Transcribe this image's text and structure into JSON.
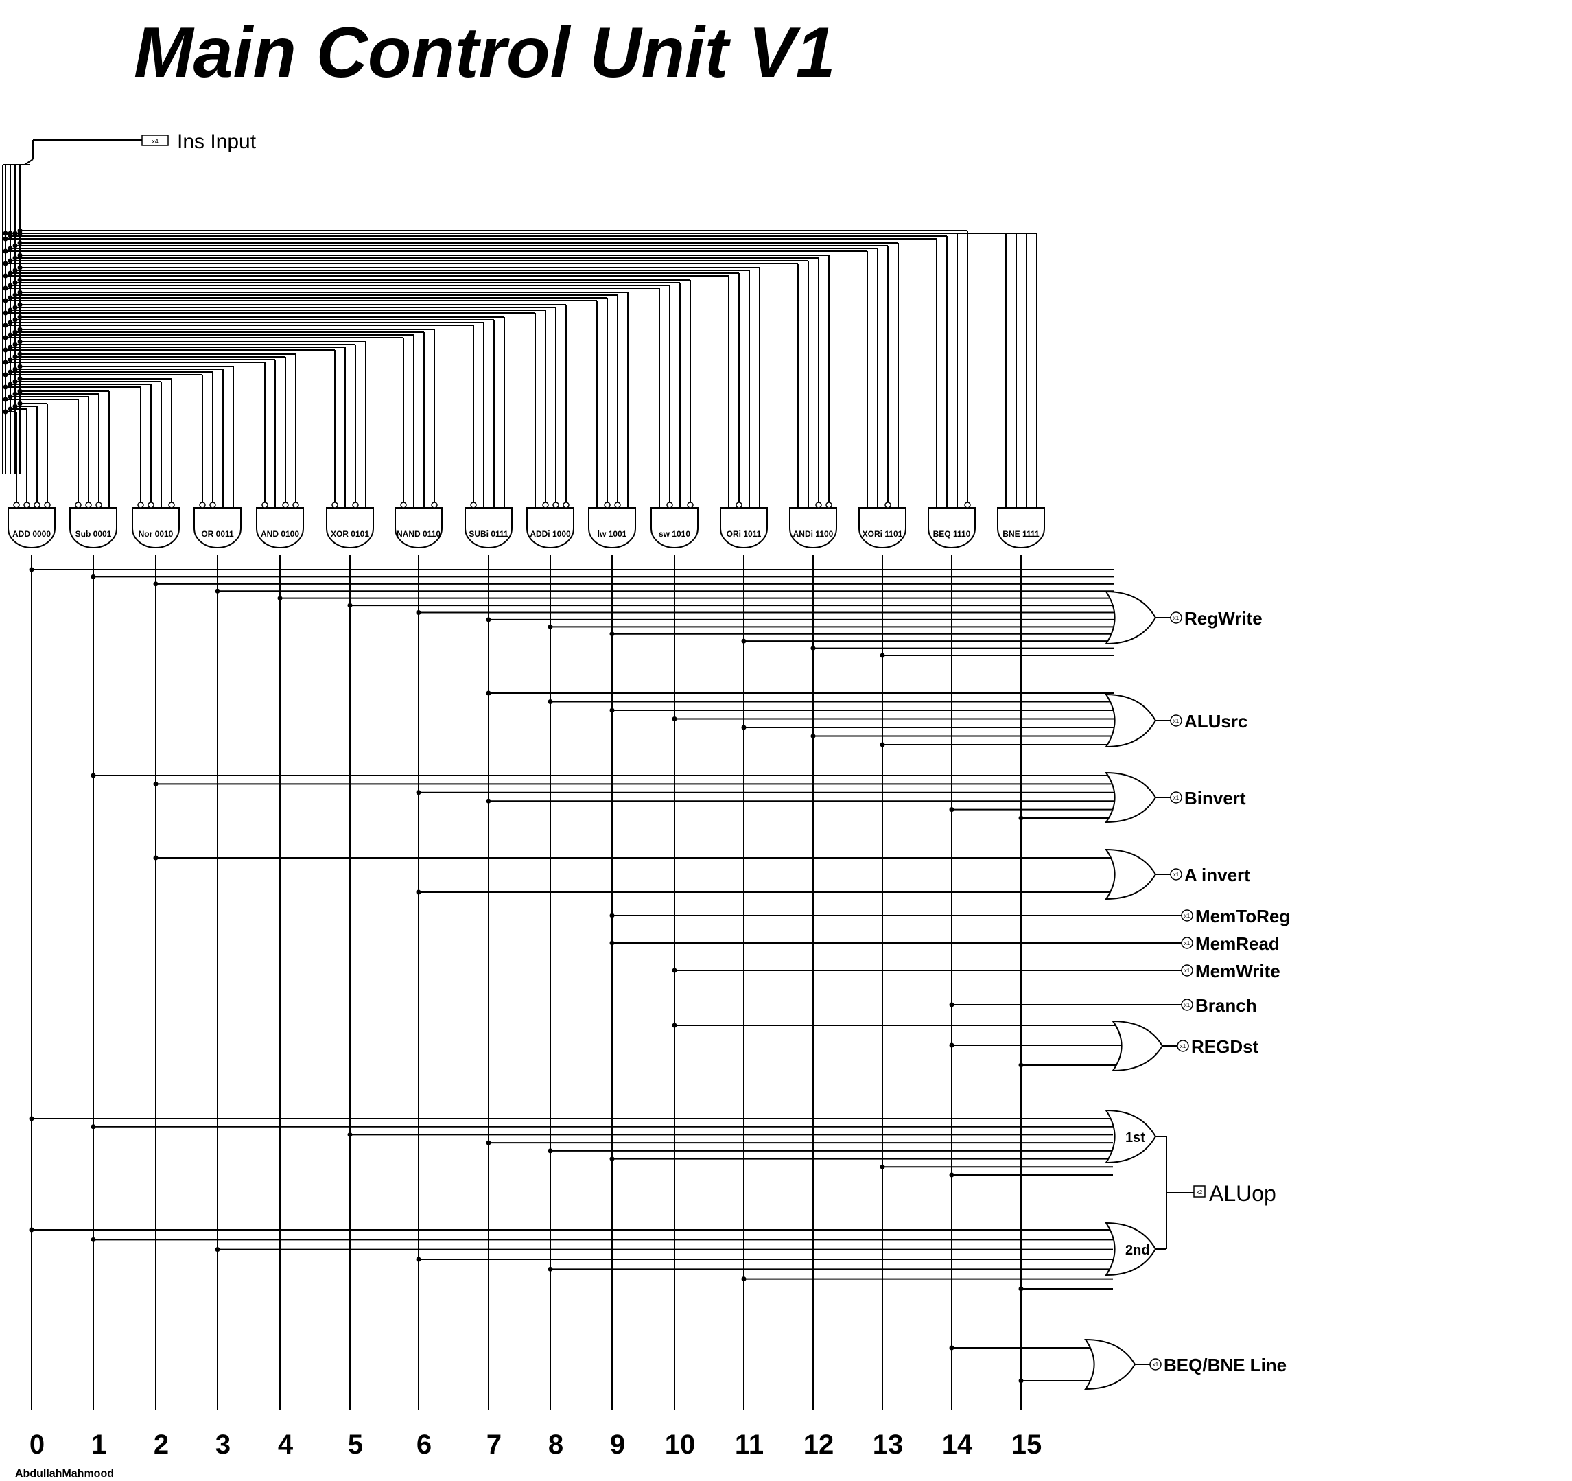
{
  "title": "Main Control Unit V1",
  "input": {
    "label": "Ins Input",
    "pin": "x4"
  },
  "decoders": [
    {
      "label": "ADD 0000"
    },
    {
      "label": "Sub 0001"
    },
    {
      "label": "Nor 0010"
    },
    {
      "label": "OR 0011"
    },
    {
      "label": "AND 0100"
    },
    {
      "label": "XOR 0101"
    },
    {
      "label": "NAND 0110"
    },
    {
      "label": "SUBi 0111"
    },
    {
      "label": "ADDi 1000"
    },
    {
      "label": "lw 1001"
    },
    {
      "label": "sw 1010"
    },
    {
      "label": "ORi 1011"
    },
    {
      "label": "ANDi 1100"
    },
    {
      "label": "XORi 1101"
    },
    {
      "label": "BEQ 1110"
    },
    {
      "label": "BNE 1111"
    }
  ],
  "columns": [
    "0",
    "1",
    "2",
    "3",
    "4",
    "5",
    "6",
    "7",
    "8",
    "9",
    "10",
    "11",
    "12",
    "13",
    "14",
    "15"
  ],
  "outputs": [
    {
      "label": "RegWrite",
      "pin": "x1",
      "sources": [
        0,
        1,
        2,
        3,
        4,
        5,
        6,
        7,
        8,
        9,
        11,
        12,
        13
      ]
    },
    {
      "label": "ALUsrc",
      "pin": "x1",
      "sources": [
        7,
        8,
        9,
        10,
        11,
        12,
        13
      ]
    },
    {
      "label": "Binvert",
      "pin": "x1",
      "sources": [
        1,
        2,
        6,
        7,
        14,
        15
      ]
    },
    {
      "label": "A invert",
      "pin": "x1",
      "sources": [
        2,
        6
      ]
    },
    {
      "label": "MemToReg",
      "pin": "x1",
      "sources": [
        9
      ]
    },
    {
      "label": "MemRead",
      "pin": "x1",
      "sources": [
        9
      ]
    },
    {
      "label": "MemWrite",
      "pin": "x1",
      "sources": [
        10
      ]
    },
    {
      "label": "Branch",
      "pin": "x1",
      "sources": [
        14
      ]
    },
    {
      "label": "REGDst",
      "pin": "x1",
      "sources": [
        10,
        14,
        15
      ]
    },
    {
      "label": "BEQ/BNE Line",
      "pin": "x1",
      "sources": [
        14,
        15
      ]
    }
  ],
  "aluop": {
    "label": "ALUop",
    "pin": "x2",
    "gates": [
      {
        "label": "1st",
        "sources": [
          0,
          1,
          5,
          7,
          8,
          9,
          13,
          14
        ]
      },
      {
        "label": "2nd",
        "sources": [
          0,
          1,
          3,
          6,
          8,
          11,
          15
        ]
      }
    ]
  },
  "author": "AbdullahMahmood"
}
